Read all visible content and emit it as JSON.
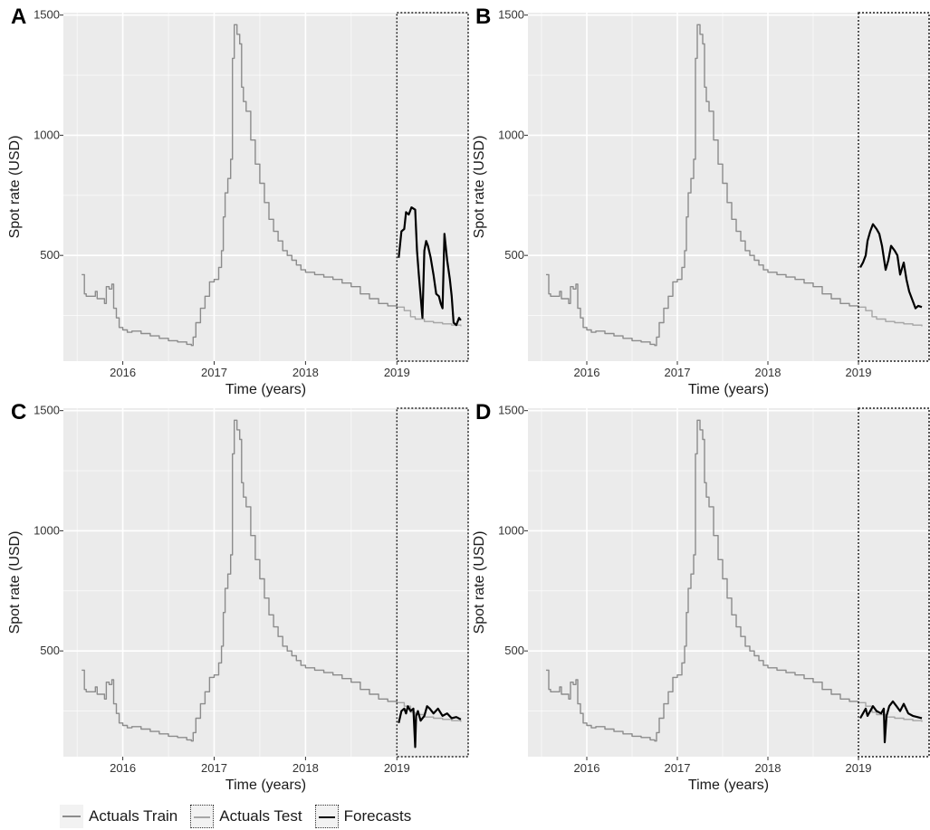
{
  "figure": {
    "xlabel": "Time (years)",
    "ylabel": "Spot rate (USD)",
    "x_ticks": [
      "2016",
      "2017",
      "2018",
      "2019"
    ],
    "y_ticks": [
      "500",
      "1000",
      "1500"
    ]
  },
  "legend": {
    "items": [
      {
        "label": "Actuals Train",
        "color": "#8c8c8c",
        "style": "solid"
      },
      {
        "label": "Actuals Test",
        "color": "#a6a6a6",
        "style": "dotted-box"
      },
      {
        "label": "Forecasts",
        "color": "#000000",
        "style": "solid"
      }
    ]
  },
  "colors": {
    "panel_bg": "#ebebeb",
    "grid": "#ffffff",
    "train": "#8c8c8c",
    "test": "#a6a6a6",
    "forecast": "#000000"
  },
  "chart_data": [
    {
      "panel": "A",
      "type": "line",
      "xlabel": "Time (years)",
      "ylabel": "Spot rate (USD)",
      "xlim": [
        2015.35,
        2019.78
      ],
      "ylim": [
        60,
        1510
      ],
      "test_window": [
        2019.0,
        2019.78
      ],
      "series": [
        {
          "role": "train",
          "x": [
            2015.55,
            2015.58,
            2015.6,
            2015.7,
            2015.72,
            2015.8,
            2015.82,
            2015.85,
            2015.88,
            2015.9,
            2015.93,
            2015.96,
            2016.0,
            2016.05,
            2016.1,
            2016.2,
            2016.3,
            2016.4,
            2016.5,
            2016.6,
            2016.7,
            2016.75,
            2016.77,
            2016.8,
            2016.85,
            2016.9,
            2016.95,
            2017.0,
            2017.05,
            2017.08,
            2017.1,
            2017.12,
            2017.15,
            2017.18,
            2017.2,
            2017.22,
            2017.25,
            2017.28,
            2017.3,
            2017.32,
            2017.35,
            2017.4,
            2017.45,
            2017.5,
            2017.55,
            2017.6,
            2017.65,
            2017.7,
            2017.75,
            2017.8,
            2017.85,
            2017.9,
            2017.95,
            2018.0,
            2018.1,
            2018.2,
            2018.3,
            2018.4,
            2018.5,
            2018.6,
            2018.7,
            2018.8,
            2018.9,
            2019.0
          ],
          "y": [
            420,
            340,
            330,
            350,
            320,
            300,
            370,
            360,
            380,
            280,
            240,
            200,
            190,
            180,
            185,
            175,
            165,
            155,
            145,
            140,
            130,
            125,
            160,
            220,
            280,
            330,
            390,
            400,
            450,
            520,
            660,
            760,
            820,
            900,
            1320,
            1460,
            1420,
            1380,
            1200,
            1140,
            1100,
            980,
            880,
            800,
            720,
            650,
            600,
            560,
            520,
            500,
            480,
            460,
            440,
            430,
            420,
            410,
            400,
            385,
            370,
            340,
            320,
            300,
            290,
            280
          ]
        },
        {
          "role": "test",
          "x": [
            2019.0,
            2019.08,
            2019.15,
            2019.2,
            2019.3,
            2019.4,
            2019.5,
            2019.6,
            2019.7
          ],
          "y": [
            285,
            270,
            245,
            235,
            225,
            220,
            215,
            210,
            205
          ]
        },
        {
          "role": "forecast",
          "x": [
            2019.02,
            2019.05,
            2019.08,
            2019.1,
            2019.13,
            2019.16,
            2019.2,
            2019.22,
            2019.24,
            2019.26,
            2019.28,
            2019.3,
            2019.32,
            2019.34,
            2019.37,
            2019.4,
            2019.43,
            2019.46,
            2019.48,
            2019.5,
            2019.52,
            2019.55,
            2019.58,
            2019.6,
            2019.62,
            2019.65,
            2019.68,
            2019.7
          ],
          "y": [
            490,
            600,
            610,
            680,
            670,
            700,
            690,
            520,
            420,
            330,
            240,
            520,
            560,
            540,
            490,
            420,
            340,
            330,
            300,
            280,
            590,
            480,
            400,
            330,
            220,
            210,
            240,
            230
          ]
        }
      ]
    },
    {
      "panel": "B",
      "type": "line",
      "xlabel": "Time (years)",
      "ylabel": "Spot rate (USD)",
      "xlim": [
        2015.35,
        2019.78
      ],
      "ylim": [
        60,
        1510
      ],
      "test_window": [
        2019.0,
        2019.78
      ],
      "series": [
        {
          "role": "train",
          "x": [
            2015.55,
            2015.58,
            2015.6,
            2015.7,
            2015.72,
            2015.8,
            2015.82,
            2015.85,
            2015.88,
            2015.9,
            2015.93,
            2015.96,
            2016.0,
            2016.05,
            2016.1,
            2016.2,
            2016.3,
            2016.4,
            2016.5,
            2016.6,
            2016.7,
            2016.75,
            2016.77,
            2016.8,
            2016.85,
            2016.9,
            2016.95,
            2017.0,
            2017.05,
            2017.08,
            2017.1,
            2017.12,
            2017.15,
            2017.18,
            2017.2,
            2017.22,
            2017.25,
            2017.28,
            2017.3,
            2017.32,
            2017.35,
            2017.4,
            2017.45,
            2017.5,
            2017.55,
            2017.6,
            2017.65,
            2017.7,
            2017.75,
            2017.8,
            2017.85,
            2017.9,
            2017.95,
            2018.0,
            2018.1,
            2018.2,
            2018.3,
            2018.4,
            2018.5,
            2018.6,
            2018.7,
            2018.8,
            2018.9,
            2019.0
          ],
          "y": [
            420,
            340,
            330,
            350,
            320,
            300,
            370,
            360,
            380,
            280,
            240,
            200,
            190,
            180,
            185,
            175,
            165,
            155,
            145,
            140,
            130,
            125,
            160,
            220,
            280,
            330,
            390,
            400,
            450,
            520,
            660,
            760,
            820,
            900,
            1320,
            1460,
            1420,
            1380,
            1200,
            1140,
            1100,
            980,
            880,
            800,
            720,
            650,
            600,
            560,
            520,
            500,
            480,
            460,
            440,
            430,
            420,
            410,
            400,
            385,
            370,
            340,
            320,
            300,
            290,
            280
          ]
        },
        {
          "role": "test",
          "x": [
            2019.0,
            2019.08,
            2019.15,
            2019.2,
            2019.3,
            2019.4,
            2019.5,
            2019.6,
            2019.7
          ],
          "y": [
            285,
            270,
            245,
            235,
            225,
            220,
            215,
            210,
            205
          ]
        },
        {
          "role": "forecast",
          "x": [
            2019.02,
            2019.05,
            2019.08,
            2019.1,
            2019.13,
            2019.16,
            2019.2,
            2019.23,
            2019.26,
            2019.3,
            2019.33,
            2019.36,
            2019.4,
            2019.43,
            2019.46,
            2019.5,
            2019.53,
            2019.56,
            2019.6,
            2019.63,
            2019.66,
            2019.7
          ],
          "y": [
            450,
            470,
            500,
            560,
            600,
            630,
            610,
            590,
            540,
            440,
            480,
            540,
            520,
            500,
            420,
            470,
            400,
            350,
            310,
            280,
            290,
            285
          ]
        }
      ]
    },
    {
      "panel": "C",
      "type": "line",
      "xlabel": "Time (years)",
      "ylabel": "Spot rate (USD)",
      "xlim": [
        2015.35,
        2019.78
      ],
      "ylim": [
        60,
        1510
      ],
      "test_window": [
        2019.0,
        2019.78
      ],
      "series": [
        {
          "role": "train",
          "x": [
            2015.55,
            2015.58,
            2015.6,
            2015.7,
            2015.72,
            2015.8,
            2015.82,
            2015.85,
            2015.88,
            2015.9,
            2015.93,
            2015.96,
            2016.0,
            2016.05,
            2016.1,
            2016.2,
            2016.3,
            2016.4,
            2016.5,
            2016.6,
            2016.7,
            2016.75,
            2016.77,
            2016.8,
            2016.85,
            2016.9,
            2016.95,
            2017.0,
            2017.05,
            2017.08,
            2017.1,
            2017.12,
            2017.15,
            2017.18,
            2017.2,
            2017.22,
            2017.25,
            2017.28,
            2017.3,
            2017.32,
            2017.35,
            2017.4,
            2017.45,
            2017.5,
            2017.55,
            2017.6,
            2017.65,
            2017.7,
            2017.75,
            2017.8,
            2017.85,
            2017.9,
            2017.95,
            2018.0,
            2018.1,
            2018.2,
            2018.3,
            2018.4,
            2018.5,
            2018.6,
            2018.7,
            2018.8,
            2018.9,
            2019.0
          ],
          "y": [
            420,
            340,
            330,
            350,
            320,
            300,
            370,
            360,
            380,
            280,
            240,
            200,
            190,
            180,
            185,
            175,
            165,
            155,
            145,
            140,
            130,
            125,
            160,
            220,
            280,
            330,
            390,
            400,
            450,
            520,
            660,
            760,
            820,
            900,
            1320,
            1460,
            1420,
            1380,
            1200,
            1140,
            1100,
            980,
            880,
            800,
            720,
            650,
            600,
            560,
            520,
            500,
            480,
            460,
            440,
            430,
            420,
            410,
            400,
            385,
            370,
            340,
            320,
            300,
            290,
            280
          ]
        },
        {
          "role": "test",
          "x": [
            2019.0,
            2019.08,
            2019.15,
            2019.2,
            2019.3,
            2019.4,
            2019.5,
            2019.6,
            2019.7
          ],
          "y": [
            285,
            270,
            245,
            235,
            225,
            220,
            215,
            210,
            205
          ]
        },
        {
          "role": "forecast",
          "x": [
            2019.02,
            2019.05,
            2019.08,
            2019.1,
            2019.12,
            2019.15,
            2019.18,
            2019.2,
            2019.21,
            2019.23,
            2019.26,
            2019.3,
            2019.33,
            2019.36,
            2019.4,
            2019.45,
            2019.5,
            2019.55,
            2019.6,
            2019.65,
            2019.7
          ],
          "y": [
            200,
            250,
            260,
            240,
            270,
            250,
            260,
            100,
            230,
            250,
            210,
            230,
            270,
            260,
            240,
            260,
            230,
            240,
            220,
            225,
            215
          ]
        }
      ]
    },
    {
      "panel": "D",
      "type": "line",
      "xlabel": "Time (years)",
      "ylabel": "Spot rate (USD)",
      "xlim": [
        2015.35,
        2019.78
      ],
      "ylim": [
        60,
        1510
      ],
      "test_window": [
        2019.0,
        2019.78
      ],
      "series": [
        {
          "role": "train",
          "x": [
            2015.55,
            2015.58,
            2015.6,
            2015.7,
            2015.72,
            2015.8,
            2015.82,
            2015.85,
            2015.88,
            2015.9,
            2015.93,
            2015.96,
            2016.0,
            2016.05,
            2016.1,
            2016.2,
            2016.3,
            2016.4,
            2016.5,
            2016.6,
            2016.7,
            2016.75,
            2016.77,
            2016.8,
            2016.85,
            2016.9,
            2016.95,
            2017.0,
            2017.05,
            2017.08,
            2017.1,
            2017.12,
            2017.15,
            2017.18,
            2017.2,
            2017.22,
            2017.25,
            2017.28,
            2017.3,
            2017.32,
            2017.35,
            2017.4,
            2017.45,
            2017.5,
            2017.55,
            2017.6,
            2017.65,
            2017.7,
            2017.75,
            2017.8,
            2017.85,
            2017.9,
            2017.95,
            2018.0,
            2018.1,
            2018.2,
            2018.3,
            2018.4,
            2018.5,
            2018.6,
            2018.7,
            2018.8,
            2018.9,
            2019.0
          ],
          "y": [
            420,
            340,
            330,
            350,
            320,
            300,
            370,
            360,
            380,
            280,
            240,
            200,
            190,
            180,
            185,
            175,
            165,
            155,
            145,
            140,
            130,
            125,
            160,
            220,
            280,
            330,
            390,
            400,
            450,
            520,
            660,
            760,
            820,
            900,
            1320,
            1460,
            1420,
            1380,
            1200,
            1140,
            1100,
            980,
            880,
            800,
            720,
            650,
            600,
            560,
            520,
            500,
            480,
            460,
            440,
            430,
            420,
            410,
            400,
            385,
            370,
            340,
            320,
            300,
            290,
            280
          ]
        },
        {
          "role": "test",
          "x": [
            2019.0,
            2019.08,
            2019.15,
            2019.2,
            2019.3,
            2019.4,
            2019.5,
            2019.6,
            2019.7
          ],
          "y": [
            285,
            270,
            245,
            235,
            225,
            220,
            215,
            210,
            205
          ]
        },
        {
          "role": "forecast",
          "x": [
            2019.02,
            2019.05,
            2019.08,
            2019.1,
            2019.13,
            2019.16,
            2019.2,
            2019.25,
            2019.28,
            2019.29,
            2019.31,
            2019.34,
            2019.38,
            2019.42,
            2019.46,
            2019.5,
            2019.55,
            2019.6,
            2019.65,
            2019.7
          ],
          "y": [
            220,
            240,
            260,
            230,
            250,
            270,
            250,
            240,
            260,
            120,
            230,
            270,
            290,
            270,
            250,
            280,
            240,
            230,
            225,
            220
          ]
        }
      ]
    }
  ]
}
